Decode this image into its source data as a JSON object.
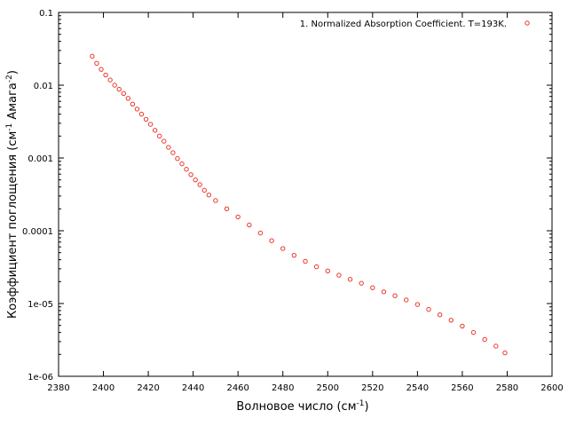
{
  "chart_data": {
    "type": "scatter",
    "title": "",
    "xlabel": {
      "main": "Волновое число (см",
      "sup": "-1",
      "end": ")"
    },
    "ylabel": {
      "p1": "Коэффициент поглощения (см",
      "s1": "-1",
      "p2": " Амага",
      "s2": "-2",
      "p3": ")"
    },
    "xlim": [
      2380,
      2600
    ],
    "ylim": [
      1e-06,
      0.1
    ],
    "yscale": "log",
    "grid": false,
    "legend_position": "top-right",
    "xticks": [
      {
        "value": 2380,
        "label": "2380"
      },
      {
        "value": 2400,
        "label": "2400"
      },
      {
        "value": 2420,
        "label": "2420"
      },
      {
        "value": 2440,
        "label": "2440"
      },
      {
        "value": 2460,
        "label": "2460"
      },
      {
        "value": 2480,
        "label": "2480"
      },
      {
        "value": 2500,
        "label": "2500"
      },
      {
        "value": 2520,
        "label": "2520"
      },
      {
        "value": 2540,
        "label": "2540"
      },
      {
        "value": 2560,
        "label": "2560"
      },
      {
        "value": 2580,
        "label": "2580"
      },
      {
        "value": 2600,
        "label": "2600"
      }
    ],
    "yticks": [
      {
        "value": 1e-06,
        "label": "1e-06"
      },
      {
        "value": 1e-05,
        "label": "1e-05"
      },
      {
        "value": 0.0001,
        "label": "0.0001"
      },
      {
        "value": 0.001,
        "label": "0.001"
      },
      {
        "value": 0.01,
        "label": "0.01"
      },
      {
        "value": 0.1,
        "label": "0.1"
      }
    ],
    "series": [
      {
        "name": "1. Normalized Absorption Coefficient. T=193K.",
        "color": "#e8382c",
        "marker": "open-circle",
        "points": [
          [
            2395,
            0.025
          ],
          [
            2397,
            0.02
          ],
          [
            2399,
            0.0165
          ],
          [
            2401,
            0.0138
          ],
          [
            2403,
            0.0118
          ],
          [
            2405,
            0.01
          ],
          [
            2407,
            0.0088
          ],
          [
            2409,
            0.0077
          ],
          [
            2411,
            0.0066
          ],
          [
            2413,
            0.0055
          ],
          [
            2415,
            0.0047
          ],
          [
            2417,
            0.004
          ],
          [
            2419,
            0.0034
          ],
          [
            2421,
            0.0029
          ],
          [
            2423,
            0.0024
          ],
          [
            2425,
            0.002
          ],
          [
            2427,
            0.0017
          ],
          [
            2429,
            0.0014
          ],
          [
            2431,
            0.00118
          ],
          [
            2433,
            0.00098
          ],
          [
            2435,
            0.00083
          ],
          [
            2437,
            0.0007
          ],
          [
            2439,
            0.00059
          ],
          [
            2441,
            0.0005
          ],
          [
            2443,
            0.00043
          ],
          [
            2445,
            0.00036
          ],
          [
            2447,
            0.00031
          ],
          [
            2450,
            0.00026
          ],
          [
            2455,
            0.0002
          ],
          [
            2460,
            0.000155
          ],
          [
            2465,
            0.00012
          ],
          [
            2470,
            9.3e-05
          ],
          [
            2475,
            7.3e-05
          ],
          [
            2480,
            5.7e-05
          ],
          [
            2485,
            4.6e-05
          ],
          [
            2490,
            3.8e-05
          ],
          [
            2495,
            3.2e-05
          ],
          [
            2500,
            2.8e-05
          ],
          [
            2505,
            2.45e-05
          ],
          [
            2510,
            2.15e-05
          ],
          [
            2515,
            1.9e-05
          ],
          [
            2520,
            1.65e-05
          ],
          [
            2525,
            1.45e-05
          ],
          [
            2530,
            1.28e-05
          ],
          [
            2535,
            1.12e-05
          ],
          [
            2540,
            9.7e-06
          ],
          [
            2545,
            8.3e-06
          ],
          [
            2550,
            7e-06
          ],
          [
            2555,
            5.9e-06
          ],
          [
            2560,
            4.9e-06
          ],
          [
            2565,
            4e-06
          ],
          [
            2570,
            3.2e-06
          ],
          [
            2575,
            2.6e-06
          ],
          [
            2579,
            2.1e-06
          ]
        ]
      }
    ]
  }
}
